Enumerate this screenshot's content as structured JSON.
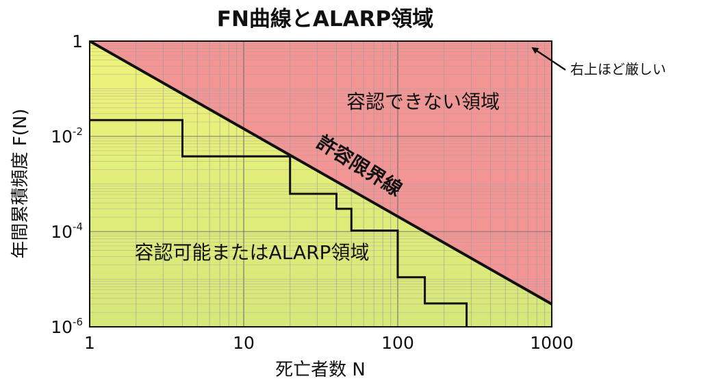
{
  "chart_data": {
    "type": "line",
    "title": "FN曲線とALARP領域",
    "xlabel": "死亡者数 N",
    "ylabel": "年間累積頻度 F(N)",
    "xscale": "log",
    "yscale": "log",
    "xlim": [
      1,
      1000
    ],
    "ylim": [
      1e-06,
      1
    ],
    "x_ticks": [
      {
        "value": 1,
        "label": "1"
      },
      {
        "value": 10,
        "label": "10"
      },
      {
        "value": 100,
        "label": "100"
      },
      {
        "value": 1000,
        "label": "1000"
      }
    ],
    "y_ticks": [
      {
        "value": 1,
        "base": "1",
        "exp": ""
      },
      {
        "value": 0.01,
        "base": "10",
        "exp": "-2"
      },
      {
        "value": 0.0001,
        "base": "10",
        "exp": "-4"
      },
      {
        "value": 1e-06,
        "base": "10",
        "exp": "-6"
      }
    ],
    "grid": true,
    "series": [
      {
        "name": "許容限界線",
        "style": "line",
        "x": [
          1,
          1000
        ],
        "y": [
          1,
          3e-06
        ]
      },
      {
        "name": "",
        "style": "step",
        "x": [
          1,
          4,
          4,
          20,
          20,
          40,
          40,
          50,
          50,
          100,
          100,
          150,
          150,
          280,
          280
        ],
        "y": [
          0.022,
          0.022,
          0.0038,
          0.0038,
          0.00062,
          0.00062,
          0.0003,
          0.0003,
          0.000105,
          0.000105,
          1.1e-05,
          1.1e-05,
          3.1e-06,
          3.1e-06,
          1e-06
        ]
      }
    ],
    "regions": {
      "unacceptable": {
        "label": "容認できない領域",
        "color": "#f49595"
      },
      "alarp": {
        "label": "容認可能またはALARP領域",
        "color_top": "#eef37a",
        "color_bottom": "#d6e87a"
      }
    },
    "annotations": {
      "limit_line_label": "許容限界線",
      "corner_note": "右上ほど厳しい"
    }
  }
}
